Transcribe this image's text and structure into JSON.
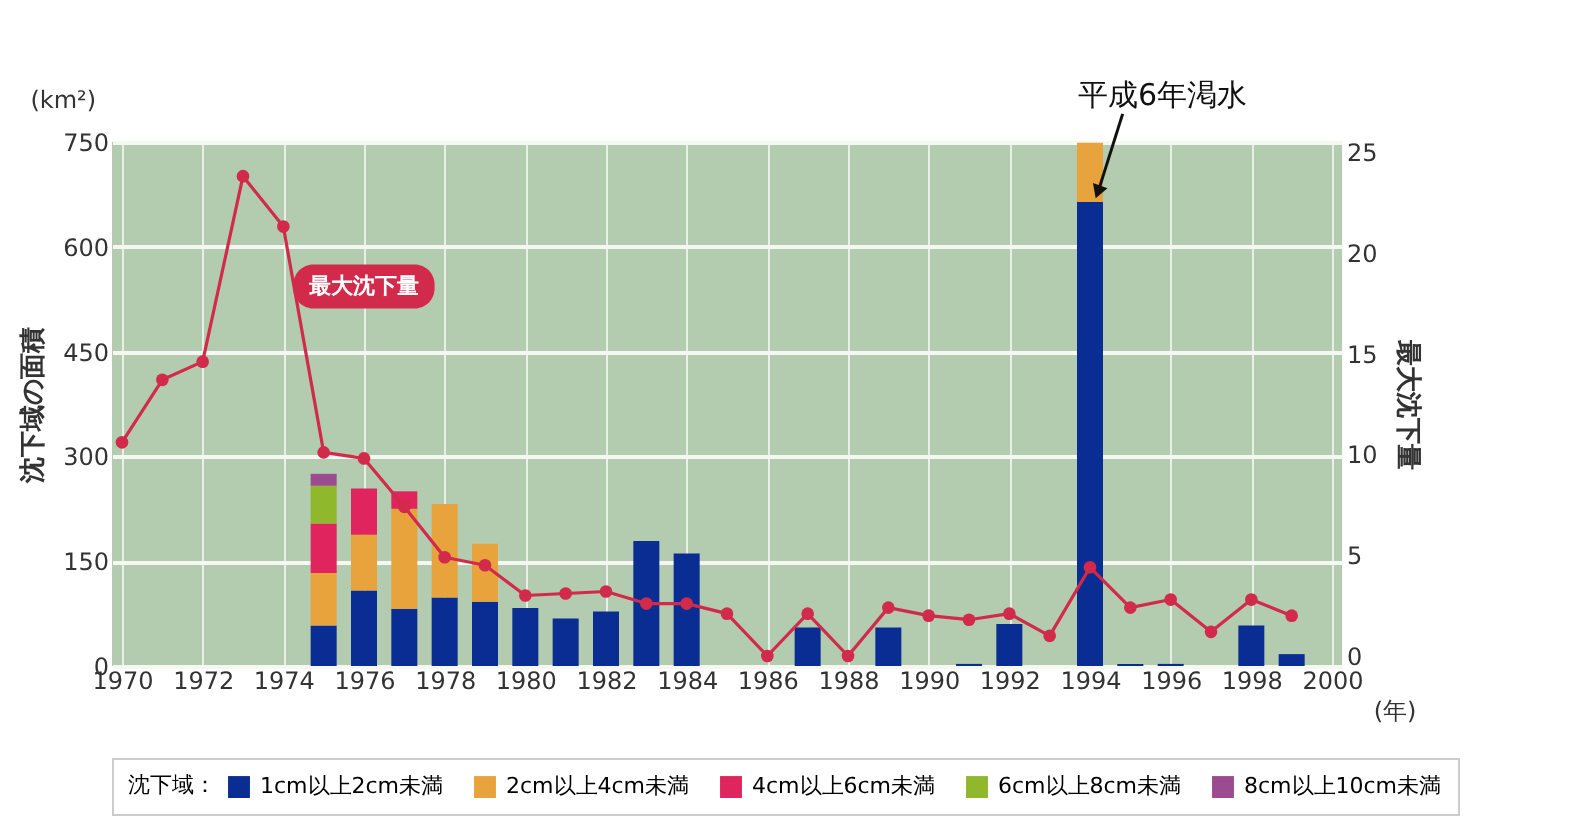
{
  "chart_data": {
    "type": "bar",
    "stacked": true,
    "ylabel": "沈下域の面積",
    "y2label": "最大沈下量",
    "xlabel": "(年)",
    "legend_title": "沈下域：",
    "legend": "bottom",
    "grid": true,
    "x": [
      1970,
      1971,
      1972,
      1973,
      1974,
      1975,
      1976,
      1977,
      1978,
      1979,
      1980,
      1981,
      1982,
      1983,
      1984,
      1985,
      1986,
      1987,
      1988,
      1989,
      1990,
      1991,
      1992,
      1993,
      1994,
      1995,
      1996,
      1997,
      1998,
      1999
    ],
    "xlim": [
      1970,
      2000
    ],
    "xticks": [
      1970,
      1972,
      1974,
      1976,
      1978,
      1980,
      1982,
      1984,
      1986,
      1988,
      1990,
      1992,
      1994,
      1996,
      1998,
      2000
    ],
    "ylim": [
      0,
      750
    ],
    "yticks": [
      0,
      150,
      300,
      450,
      600,
      750
    ],
    "y2lim": [
      0,
      25
    ],
    "y2ticks": [
      0,
      5,
      10,
      15,
      20,
      25
    ],
    "series": [
      {
        "name": "1cm以上2cm未満",
        "color": "#0a2d94",
        "values": [
          null,
          null,
          null,
          null,
          null,
          58,
          108,
          82,
          98,
          92,
          83,
          68,
          78,
          179,
          161,
          null,
          null,
          55,
          null,
          55,
          null,
          3,
          60,
          null,
          664,
          3,
          3,
          null,
          58,
          17
        ]
      },
      {
        "name": "2cm以上4cm未満",
        "color": "#e8a33d",
        "values": [
          null,
          null,
          null,
          null,
          null,
          75,
          80,
          143,
          134,
          83,
          null,
          null,
          null,
          null,
          null,
          null,
          null,
          null,
          null,
          null,
          null,
          null,
          null,
          null,
          85,
          null,
          null,
          null,
          null,
          null
        ]
      },
      {
        "name": "4cm以上6cm未満",
        "color": "#e0245e",
        "values": [
          null,
          null,
          null,
          null,
          null,
          71,
          66,
          25,
          null,
          null,
          null,
          null,
          null,
          null,
          null,
          null,
          null,
          null,
          null,
          null,
          null,
          null,
          null,
          null,
          null,
          null,
          null,
          null,
          null,
          null
        ]
      },
      {
        "name": "6cm以上8cm未満",
        "color": "#8fb82c",
        "values": [
          null,
          null,
          null,
          null,
          null,
          54,
          null,
          null,
          null,
          null,
          null,
          null,
          null,
          null,
          null,
          null,
          null,
          null,
          null,
          null,
          null,
          null,
          null,
          null,
          null,
          null,
          null,
          null,
          null,
          null
        ]
      },
      {
        "name": "8cm以上10cm未満",
        "color": "#9b4b8f",
        "values": [
          null,
          null,
          null,
          null,
          null,
          17,
          null,
          null,
          null,
          null,
          null,
          null,
          null,
          null,
          null,
          null,
          null,
          null,
          null,
          null,
          null,
          null,
          null,
          null,
          null,
          null,
          null,
          null,
          null,
          null
        ]
      },
      {
        "name": "最大沈下量",
        "type": "line",
        "axis": "y2",
        "marker": "circle",
        "color": "#d12a4a",
        "values": [
          10.6,
          13.7,
          14.6,
          23.8,
          21.3,
          10.1,
          9.8,
          7.4,
          4.9,
          4.5,
          3.0,
          3.1,
          3.2,
          2.6,
          2.6,
          2.1,
          0,
          2.1,
          0,
          2.4,
          2.0,
          1.8,
          2.1,
          1.0,
          4.4,
          2.4,
          2.8,
          1.2,
          2.8,
          2.0
        ]
      }
    ],
    "annotations": [
      "(km²)",
      {
        "text": "平成6年渇水",
        "x": 1994,
        "y": 749
      }
    ]
  }
}
